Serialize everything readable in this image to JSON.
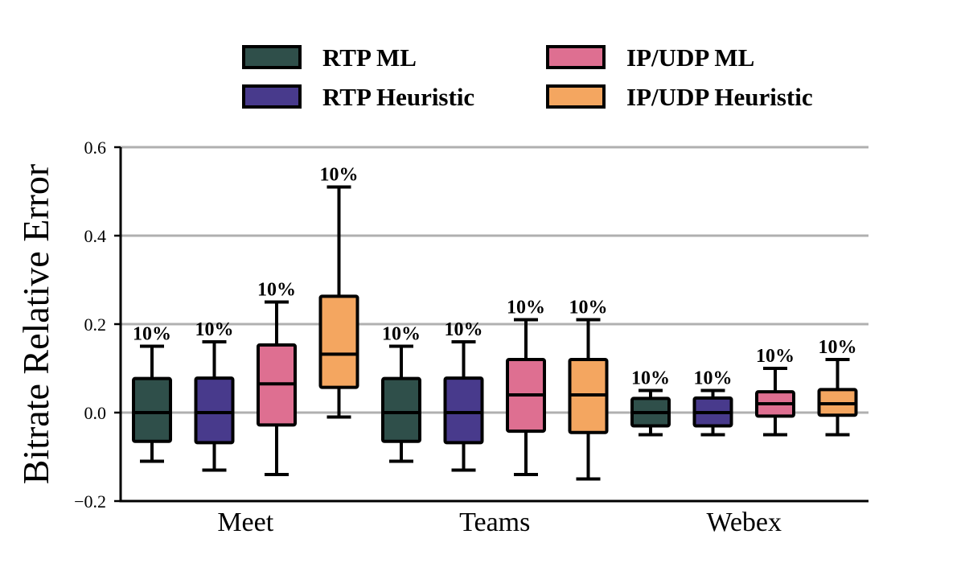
{
  "chart_data": {
    "type": "box",
    "ylabel": "Bitrate Relative Error",
    "xlabel": "",
    "ylim": [
      -0.2,
      0.6
    ],
    "yticks": [
      -0.2,
      0.0,
      0.2,
      0.4,
      0.6
    ],
    "ytick_labels": [
      "−0.2",
      "0.0",
      "0.2",
      "0.4",
      "0.6"
    ],
    "grid": "horizontal",
    "legend_position": "top",
    "categories": [
      "Meet",
      "Teams",
      "Webex"
    ],
    "series": [
      {
        "name": "RTP ML",
        "color": "#2f4f4a",
        "boxes": [
          {
            "whisker_low": -0.11,
            "q1": -0.065,
            "median": 0.0,
            "q3": 0.077,
            "whisker_high": 0.15,
            "annotation": "10%"
          },
          {
            "whisker_low": -0.11,
            "q1": -0.065,
            "median": 0.0,
            "q3": 0.077,
            "whisker_high": 0.15,
            "annotation": "10%"
          },
          {
            "whisker_low": -0.05,
            "q1": -0.03,
            "median": 0.0,
            "q3": 0.032,
            "whisker_high": 0.05,
            "annotation": "10%"
          }
        ]
      },
      {
        "name": "RTP Heuristic",
        "color": "#483a8c",
        "boxes": [
          {
            "whisker_low": -0.13,
            "q1": -0.068,
            "median": 0.0,
            "q3": 0.078,
            "whisker_high": 0.16,
            "annotation": "10%"
          },
          {
            "whisker_low": -0.13,
            "q1": -0.068,
            "median": 0.0,
            "q3": 0.078,
            "whisker_high": 0.16,
            "annotation": "10%"
          },
          {
            "whisker_low": -0.05,
            "q1": -0.03,
            "median": 0.0,
            "q3": 0.033,
            "whisker_high": 0.05,
            "annotation": "10%"
          }
        ]
      },
      {
        "name": "IP/UDP ML",
        "color": "#de6f91",
        "boxes": [
          {
            "whisker_low": -0.14,
            "q1": -0.028,
            "median": 0.065,
            "q3": 0.153,
            "whisker_high": 0.25,
            "annotation": "10%"
          },
          {
            "whisker_low": -0.14,
            "q1": -0.042,
            "median": 0.04,
            "q3": 0.12,
            "whisker_high": 0.21,
            "annotation": "10%"
          },
          {
            "whisker_low": -0.05,
            "q1": -0.008,
            "median": 0.02,
            "q3": 0.047,
            "whisker_high": 0.1,
            "annotation": "10%"
          }
        ]
      },
      {
        "name": "IP/UDP Heuristic",
        "color": "#f4a660",
        "boxes": [
          {
            "whisker_low": -0.01,
            "q1": 0.057,
            "median": 0.132,
            "q3": 0.263,
            "whisker_high": 0.51,
            "annotation": "10%"
          },
          {
            "whisker_low": -0.15,
            "q1": -0.045,
            "median": 0.04,
            "q3": 0.12,
            "whisker_high": 0.21,
            "annotation": "10%"
          },
          {
            "whisker_low": -0.05,
            "q1": -0.006,
            "median": 0.02,
            "q3": 0.052,
            "whisker_high": 0.12,
            "annotation": "10%"
          }
        ]
      }
    ]
  }
}
